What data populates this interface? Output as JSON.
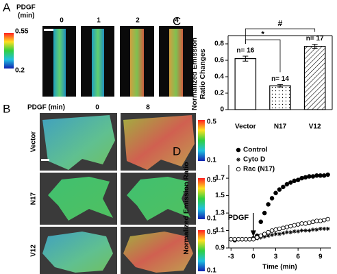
{
  "panel_a": {
    "label": "A",
    "condition": "PDGF",
    "unit": "(min)",
    "times": [
      "0",
      "1",
      "2",
      "4"
    ],
    "colorbar": [
      "0.55",
      "0.2"
    ]
  },
  "panel_b": {
    "label": "B",
    "condition": "PDGF (min)",
    "times": [
      "0",
      "8"
    ],
    "rows": [
      "Vector",
      "N17",
      "V12"
    ],
    "colorbar": [
      "0.5",
      "0.1"
    ]
  },
  "chart_data": [
    {
      "type": "bar",
      "panel": "C",
      "ylabel": "Normalized Emission Ratio Changes",
      "categories": [
        "Vector",
        "N17",
        "V12"
      ],
      "values": [
        0.62,
        0.29,
        0.77
      ],
      "errors": [
        0.03,
        0.015,
        0.025
      ],
      "annotations": [
        "n= 16",
        "n= 14",
        "n= 17"
      ],
      "significance": [
        {
          "label": "*",
          "pair": [
            0,
            1
          ]
        },
        {
          "label": "#",
          "pair": [
            0,
            2
          ]
        }
      ],
      "patterns": [
        "none",
        "dots",
        "hatch"
      ],
      "color": "#ffffff",
      "ylim": [
        0,
        0.9
      ],
      "yticks": [
        0,
        0.2,
        0.4,
        0.6,
        0.8
      ]
    },
    {
      "type": "scatter",
      "panel": "D",
      "xlabel": "Time (min)",
      "ylabel": "Normalized Emission Ratio",
      "annotation": {
        "text": "PDGF",
        "x": 0
      },
      "x": [
        -3,
        -2.5,
        -2,
        -1.5,
        -1,
        -0.5,
        0,
        0.5,
        1,
        1.5,
        2,
        2.5,
        3,
        3.5,
        4,
        4.5,
        5,
        5.5,
        6,
        6.5,
        7,
        7.5,
        8,
        8.5,
        9,
        9.5,
        10
      ],
      "series": [
        {
          "name": "Control",
          "color": "#000000",
          "marker": "filled-circle",
          "values": [
            1.0,
            0.99,
            1.0,
            1.0,
            1.0,
            1.0,
            1.01,
            1.04,
            1.2,
            1.3,
            1.4,
            1.47,
            1.53,
            1.57,
            1.6,
            1.63,
            1.65,
            1.67,
            1.68,
            1.7,
            1.71,
            1.72,
            1.72,
            1.73,
            1.73,
            1.73,
            1.74
          ]
        },
        {
          "name": "Cyto D",
          "color": "#000000",
          "marker": "asterisk",
          "values": [
            1.0,
            1.0,
            1.0,
            1.0,
            1.0,
            1.0,
            1.0,
            1.01,
            1.02,
            1.03,
            1.04,
            1.05,
            1.06,
            1.06,
            1.07,
            1.08,
            1.08,
            1.09,
            1.09,
            1.1,
            1.1,
            1.1,
            1.11,
            1.11,
            1.12,
            1.12,
            1.12
          ]
        },
        {
          "name": "Rac (N17)",
          "color": "#000000",
          "marker": "open-circle",
          "values": [
            1.0,
            1.0,
            1.0,
            1.0,
            1.0,
            1.0,
            1.0,
            1.02,
            1.04,
            1.06,
            1.08,
            1.1,
            1.11,
            1.12,
            1.13,
            1.14,
            1.15,
            1.16,
            1.17,
            1.18,
            1.18,
            1.19,
            1.2,
            1.21,
            1.21,
            1.22,
            1.23
          ]
        }
      ],
      "xlim": [
        -3.3,
        10.4
      ],
      "xticks": [
        -3,
        0,
        3,
        6,
        9
      ],
      "ylim": [
        0.9,
        1.85
      ],
      "yticks": [
        0.9,
        1.1,
        1.3,
        1.5,
        1.7
      ],
      "legend": "upper left"
    }
  ]
}
